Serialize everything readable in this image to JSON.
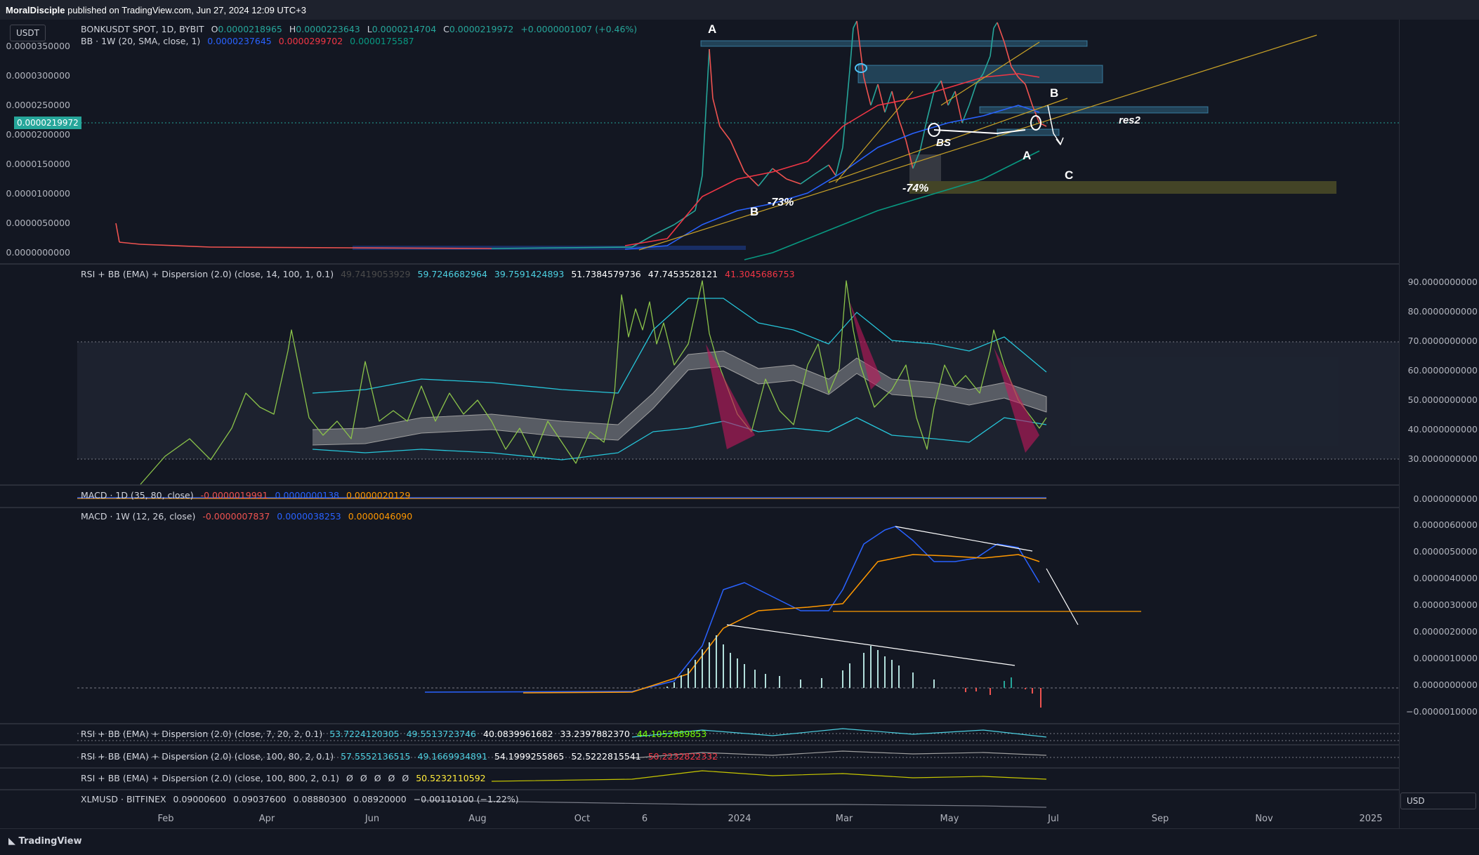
{
  "published": {
    "author": "MoralDisciple",
    "text": "published on TradingView.com, Jun 27, 2024 12:09 UTC+3"
  },
  "chart_data": [
    {
      "type": "line",
      "title": "BONKUSDT SPOT, 1D, BYBIT",
      "ohlc": {
        "open": "0.0000218965",
        "high": "0.0000223643",
        "low": "0.0000214704",
        "close": "0.0000219972",
        "change": "+0.0000001007 (+0.46%)"
      },
      "bb_legend": {
        "label": "BB · 1W (20, SMA, close, 1)",
        "basis": "0.0000237645",
        "upper": "0.0000299702",
        "lower": "0.0000175587"
      },
      "current_price": "0.0000219972",
      "yticks": [
        "0.0000350000",
        "0.0000300000",
        "0.0000250000",
        "0.0000200000",
        "0.0000150000",
        "0.0000100000",
        "0.0000050000",
        "0.0000000000"
      ],
      "ylim": [
        0,
        3.85e-05
      ],
      "colors": {
        "price_up": "#26a69a",
        "price_down": "#ef5350",
        "bb_basis": "#2962ff",
        "bb_upper": "#f23645",
        "bb_lower": "#089981",
        "trend": "#c9a227",
        "zone": "#4fc3f7",
        "c_zone": "#6b6a2a"
      },
      "annotations": [
        "A",
        "B",
        "-73%",
        "BS",
        "-74%",
        "A",
        "B",
        "C",
        "res2"
      ]
    },
    {
      "type": "line",
      "title": "RSI + BB (EMA) + Dispersion (2.0) (close, 14, 100, 1, 0.1)",
      "values_legend": [
        "49.7419053929",
        "59.7246682964",
        "39.7591424893",
        "51.7384579736",
        "47.7453528121",
        "41.3045686753"
      ],
      "yticks": [
        "90.0000000000",
        "80.0000000000",
        "70.0000000000",
        "60.0000000000",
        "50.0000000000",
        "40.0000000000",
        "30.0000000000"
      ],
      "ylim": [
        24,
        92
      ]
    },
    {
      "type": "bar",
      "title": "MACD · 1D (35, 80, close)",
      "values_legend": [
        "-0.0000019991",
        "0.0000000138",
        "0.0000020129"
      ],
      "yticks": [
        "0.0000000000"
      ]
    },
    {
      "type": "line",
      "title": "MACD · 1W (12, 26, close)",
      "values_legend": [
        "-0.0000007837",
        "0.0000038253",
        "0.0000046090"
      ],
      "yticks": [
        "0.0000060000",
        "0.0000050000",
        "0.0000040000",
        "0.0000030000",
        "0.0000020000",
        "0.0000010000",
        "0.0000000000",
        "−0.0000010000"
      ],
      "ylim": [
        -1.1e-06,
        6.2e-06
      ]
    },
    {
      "type": "line",
      "title": "RSI + BB (EMA) + Dispersion (2.0) (close, 7, 20, 2, 0.1)",
      "values_legend": [
        "53.7224120305",
        "49.5513723746",
        "40.0839961682",
        "33.2397882370",
        "44.1052889853"
      ]
    },
    {
      "type": "line",
      "title": "RSI + BB (EMA) + Dispersion (2.0) (close, 100, 80, 2, 0.1)",
      "values_legend": [
        "57.5552136515",
        "49.1669934891",
        "54.1999255865",
        "52.5222815541",
        "50.2232822332"
      ]
    },
    {
      "type": "line",
      "title": "RSI + BB (EMA) + Dispersion (2.0) (close, 100, 800, 2, 0.1)",
      "values_legend": [
        "Ø",
        "Ø",
        "Ø",
        "Ø",
        "Ø",
        "50.5232110592"
      ]
    },
    {
      "type": "line",
      "title": "XLMUSD · BITFINEX",
      "values_legend": [
        "0.09000600",
        "0.09037600",
        "0.08880300",
        "0.08920000",
        "−0.00110100 (−1.22%)"
      ]
    }
  ],
  "time_axis": [
    "Feb",
    "Apr",
    "Jun",
    "Aug",
    "Oct",
    "6",
    "2024",
    "Mar",
    "May",
    "Jul",
    "Sep",
    "Nov",
    "2025"
  ],
  "currency_top": "USDT",
  "currency_bottom": "USD",
  "footer": {
    "logo_text": "TradingView"
  }
}
